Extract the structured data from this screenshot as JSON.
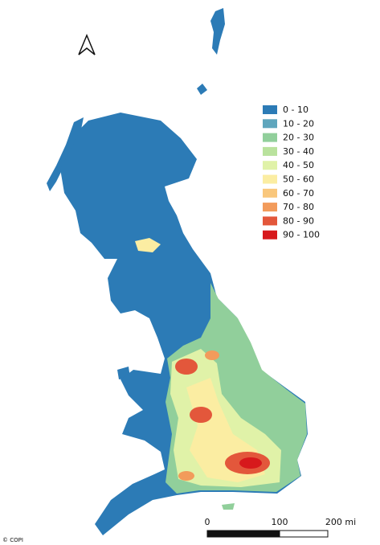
{
  "legend": {
    "items": [
      {
        "label": "0 - 10",
        "color": "#2c7bb6"
      },
      {
        "label": "10 - 20",
        "color": "#5fa6bd"
      },
      {
        "label": "20 - 30",
        "color": "#91cf9b"
      },
      {
        "label": "30 - 40",
        "color": "#b9e29d"
      },
      {
        "label": "40 - 50",
        "color": "#e0f2a8"
      },
      {
        "label": "50 - 60",
        "color": "#fbeda2"
      },
      {
        "label": "60 - 70",
        "color": "#f9c77c"
      },
      {
        "label": "70 - 80",
        "color": "#f29b5b"
      },
      {
        "label": "80 - 90",
        "color": "#e3573b"
      },
      {
        "label": "90 - 100",
        "color": "#d7191c"
      }
    ]
  },
  "scale_bar": {
    "labels": [
      "0",
      "100",
      "200 mi"
    ]
  },
  "credit": "© COPI"
}
